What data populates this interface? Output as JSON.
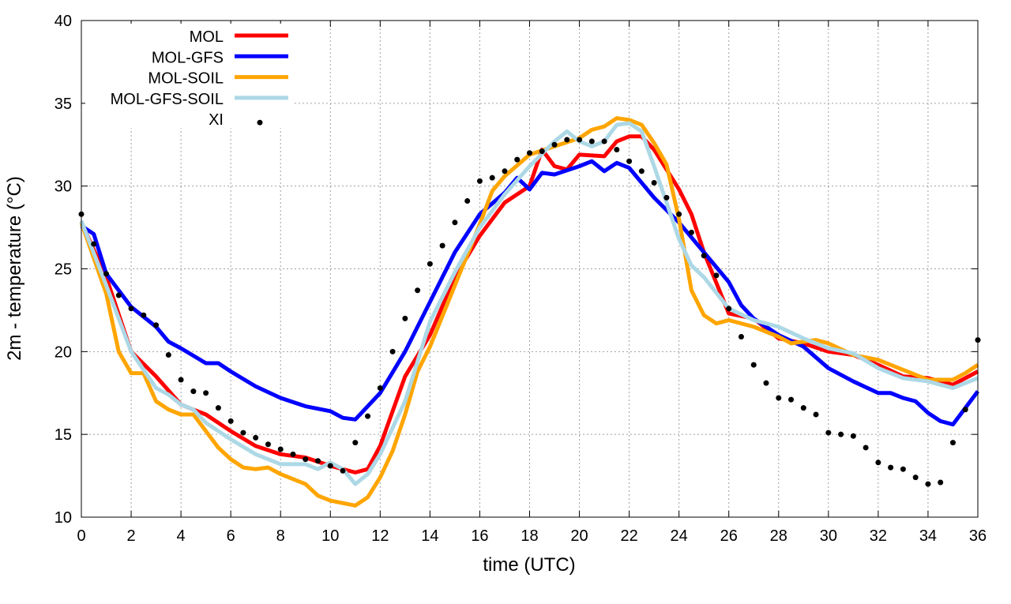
{
  "chart_data": {
    "type": "line",
    "title": "",
    "xlabel": "time (UTC)",
    "ylabel": "2m - temperature (°C)",
    "xlim": [
      0,
      36
    ],
    "ylim": [
      10,
      40
    ],
    "xticks": [
      0,
      2,
      4,
      6,
      8,
      10,
      12,
      14,
      16,
      18,
      20,
      22,
      24,
      26,
      28,
      30,
      32,
      34,
      36
    ],
    "yticks": [
      10,
      15,
      20,
      25,
      30,
      35,
      40
    ],
    "grid": true,
    "legend_position": "top-left",
    "series": [
      {
        "name": "MOL",
        "color": "#ff0000",
        "style": "line",
        "x": [
          0,
          1,
          2,
          3,
          4,
          5,
          6,
          7,
          8,
          9,
          10,
          11,
          11.5,
          12,
          13,
          14,
          15,
          16,
          17,
          18,
          18.5,
          19,
          19.5,
          20,
          21,
          21.5,
          22,
          22.5,
          23,
          24,
          24.5,
          25,
          26,
          27,
          28,
          29,
          30,
          31,
          32,
          33,
          34,
          35,
          36
        ],
        "y": [
          27.8,
          24.5,
          20.0,
          18.5,
          16.8,
          16.2,
          15.2,
          14.3,
          13.8,
          13.6,
          13.1,
          12.7,
          12.9,
          14.3,
          18.5,
          21.0,
          24.5,
          27.0,
          29.0,
          30.0,
          32.2,
          31.2,
          31.0,
          31.9,
          31.8,
          32.7,
          33.0,
          33.0,
          32.2,
          29.8,
          28.3,
          26.0,
          22.3,
          22.0,
          20.8,
          20.5,
          20.0,
          19.8,
          19.2,
          18.5,
          18.4,
          18.0,
          18.8
        ]
      },
      {
        "name": "MOL-GFS",
        "color": "#0000ff",
        "style": "line",
        "x": [
          0,
          0.5,
          1,
          2,
          3,
          3.5,
          4,
          5,
          5.5,
          6,
          7,
          8,
          9,
          10,
          10.5,
          11,
          12,
          13,
          14,
          15,
          16,
          17,
          17.5,
          18,
          18.5,
          19,
          20,
          20.5,
          21,
          21.5,
          22,
          23,
          24,
          25,
          26,
          26.5,
          27,
          28,
          29,
          30,
          31,
          32,
          32.5,
          33,
          33.5,
          34,
          34.5,
          35,
          36
        ],
        "y": [
          27.6,
          27.1,
          24.7,
          22.7,
          21.5,
          20.6,
          20.2,
          19.3,
          19.3,
          18.8,
          17.9,
          17.2,
          16.7,
          16.4,
          16.0,
          15.9,
          17.5,
          20.0,
          23.0,
          26.0,
          28.3,
          29.6,
          30.5,
          29.8,
          30.8,
          30.7,
          31.2,
          31.5,
          30.9,
          31.4,
          31.1,
          29.3,
          27.8,
          26.0,
          24.2,
          22.8,
          22.0,
          21.0,
          20.3,
          19.0,
          18.2,
          17.5,
          17.5,
          17.2,
          17.0,
          16.3,
          15.8,
          15.6,
          17.6
        ]
      },
      {
        "name": "MOL-SOIL",
        "color": "#ffa500",
        "style": "line",
        "x": [
          0,
          1,
          1.5,
          2,
          2.5,
          3,
          3.5,
          4,
          4.5,
          5,
          5.5,
          6,
          6.5,
          7,
          7.5,
          8,
          9,
          9.5,
          10,
          11,
          11.5,
          12,
          12.5,
          13,
          13.5,
          14,
          15,
          16,
          16.5,
          17,
          18,
          19,
          20,
          20.5,
          21,
          21.5,
          22,
          22.5,
          23,
          23.5,
          24,
          24.5,
          25,
          25.5,
          26,
          27,
          28,
          28.5,
          29,
          29.5,
          30,
          31,
          32,
          33,
          34,
          35,
          35.5,
          36
        ],
        "y": [
          27.8,
          23.5,
          20.0,
          18.7,
          18.7,
          17.0,
          16.5,
          16.2,
          16.2,
          15.2,
          14.2,
          13.5,
          13.0,
          12.9,
          13.0,
          12.6,
          12.0,
          11.3,
          11.0,
          10.7,
          11.2,
          12.4,
          14.0,
          16.2,
          18.8,
          20.3,
          24.0,
          27.7,
          29.7,
          30.6,
          31.9,
          32.4,
          32.9,
          33.4,
          33.6,
          34.1,
          34.0,
          33.7,
          32.6,
          31.3,
          28.0,
          23.7,
          22.2,
          21.7,
          21.9,
          21.5,
          20.9,
          20.5,
          20.6,
          20.7,
          20.5,
          19.8,
          19.5,
          18.9,
          18.3,
          18.3,
          18.7,
          19.2
        ]
      },
      {
        "name": "MOL-GFS-SOIL",
        "color": "#add8e6",
        "style": "line",
        "x": [
          0,
          1,
          2,
          3,
          3.5,
          4,
          4.5,
          5,
          6,
          7,
          8,
          9,
          9.5,
          10,
          10.5,
          11,
          11.5,
          12,
          13,
          14,
          15,
          16,
          17,
          18,
          19,
          19.5,
          20,
          20.5,
          21,
          21.5,
          22,
          22.5,
          23,
          24,
          24.5,
          25,
          26,
          27,
          28,
          29,
          30,
          31,
          32,
          33,
          34,
          35,
          36
        ],
        "y": [
          27.9,
          24.0,
          20.0,
          17.8,
          17.4,
          16.8,
          16.5,
          15.7,
          14.7,
          13.8,
          13.2,
          13.2,
          12.9,
          13.3,
          12.9,
          12.0,
          12.6,
          13.8,
          17.0,
          21.8,
          24.8,
          27.5,
          29.5,
          31.2,
          32.7,
          33.3,
          32.7,
          32.4,
          32.7,
          33.7,
          33.8,
          33.3,
          31.2,
          26.8,
          25.2,
          24.5,
          22.6,
          21.9,
          21.5,
          20.8,
          20.2,
          19.9,
          19.0,
          18.4,
          18.2,
          17.8,
          18.4
        ]
      },
      {
        "name": "XI",
        "color": "#000000",
        "style": "points",
        "x": [
          0,
          0.5,
          1,
          1.5,
          2,
          2.5,
          3,
          3.5,
          4,
          4.5,
          5,
          5.5,
          6,
          6.5,
          7,
          7.5,
          8,
          8.5,
          9,
          9.5,
          10,
          10.5,
          11,
          11.5,
          12,
          12.5,
          13,
          13.5,
          14,
          14.5,
          15,
          15.5,
          16,
          16.5,
          17,
          17.5,
          18,
          18.5,
          19,
          19.5,
          20,
          20.5,
          21,
          21.5,
          22,
          22.5,
          23,
          23.5,
          24,
          24.5,
          25,
          25.5,
          26,
          26.5,
          27,
          27.5,
          28,
          28.5,
          29,
          29.5,
          30,
          30.5,
          31,
          31.5,
          32,
          32.5,
          33,
          33.5,
          34,
          34.5,
          35,
          35.5,
          36
        ],
        "y": [
          28.3,
          26.5,
          24.7,
          23.4,
          22.6,
          22.2,
          21.6,
          19.8,
          18.3,
          17.6,
          17.5,
          16.6,
          15.8,
          15.1,
          14.8,
          14.4,
          14.1,
          13.8,
          13.5,
          13.4,
          13.1,
          12.8,
          14.5,
          16.1,
          17.8,
          20.0,
          22.0,
          23.7,
          25.3,
          26.4,
          27.8,
          29.1,
          30.3,
          30.5,
          30.9,
          31.6,
          32.0,
          32.1,
          32.5,
          32.8,
          32.8,
          32.7,
          32.7,
          32.2,
          31.5,
          30.9,
          30.2,
          29.3,
          28.3,
          27.2,
          25.8,
          24.6,
          22.6,
          20.9,
          19.2,
          18.1,
          17.2,
          17.1,
          16.6,
          16.2,
          15.1,
          15.0,
          14.9,
          14.2,
          13.3,
          13.0,
          12.9,
          12.4,
          12.0,
          12.1,
          14.5,
          16.5,
          20.7
        ]
      }
    ]
  }
}
